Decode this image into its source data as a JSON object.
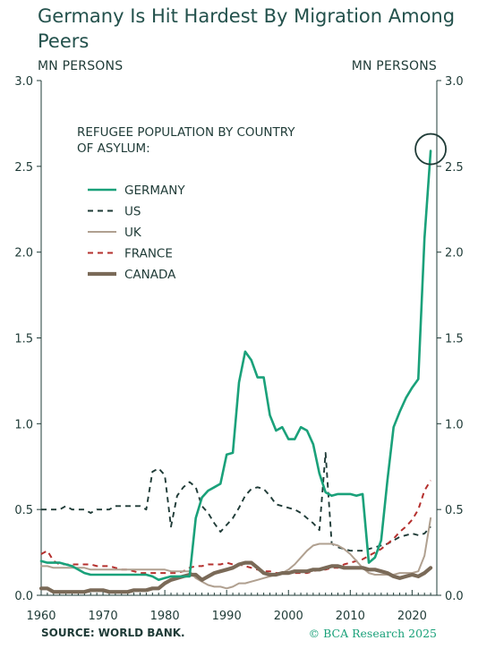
{
  "title": "Germany Is Hit Hardest By Migration Among Peers",
  "unit_left": "MN PERSONS",
  "unit_right": "MN PERSONS",
  "source": "SOURCE: WORLD BANK.",
  "credit": "© BCA Research 2025",
  "chart_data": {
    "type": "line",
    "legend_title": [
      "REFUGEE POPULATION BY COUNTRY",
      "OF ASYLUM:"
    ],
    "legend_placement": "top-left",
    "xlim": [
      1960,
      2024
    ],
    "ylim": [
      0,
      3.0
    ],
    "x_ticks": [
      "1960",
      "1970",
      "1980",
      "1990",
      "2000",
      "2010",
      "2020"
    ],
    "y_ticks": [
      "0.0",
      "0.5",
      "1.0",
      "1.5",
      "2.0",
      "2.5",
      "3.0"
    ],
    "grid": false,
    "annotations": [
      {
        "type": "circle",
        "x": 2023,
        "y": 2.59,
        "note": "highlights latest Germany value"
      }
    ],
    "series": [
      {
        "name": "GERMANY",
        "color": "#1aa17a",
        "style": "solid",
        "width": 2.6,
        "x": [
          1960,
          1961,
          1962,
          1963,
          1964,
          1965,
          1966,
          1967,
          1968,
          1969,
          1970,
          1971,
          1972,
          1973,
          1974,
          1975,
          1976,
          1977,
          1978,
          1979,
          1980,
          1981,
          1982,
          1983,
          1984,
          1985,
          1986,
          1987,
          1988,
          1989,
          1990,
          1991,
          1992,
          1993,
          1994,
          1995,
          1996,
          1997,
          1998,
          1999,
          2000,
          2001,
          2002,
          2003,
          2004,
          2005,
          2006,
          2007,
          2008,
          2009,
          2010,
          2011,
          2012,
          2013,
          2014,
          2015,
          2016,
          2017,
          2018,
          2019,
          2020,
          2021,
          2022,
          2023
        ],
        "y": [
          0.2,
          0.19,
          0.19,
          0.19,
          0.18,
          0.17,
          0.15,
          0.13,
          0.12,
          0.12,
          0.12,
          0.12,
          0.12,
          0.12,
          0.12,
          0.12,
          0.12,
          0.12,
          0.11,
          0.09,
          0.1,
          0.11,
          0.11,
          0.11,
          0.11,
          0.45,
          0.57,
          0.61,
          0.63,
          0.65,
          0.82,
          0.83,
          1.24,
          1.42,
          1.37,
          1.27,
          1.27,
          1.05,
          0.96,
          0.98,
          0.91,
          0.91,
          0.98,
          0.96,
          0.88,
          0.71,
          0.6,
          0.58,
          0.59,
          0.59,
          0.59,
          0.58,
          0.59,
          0.19,
          0.22,
          0.32,
          0.67,
          0.98,
          1.07,
          1.15,
          1.21,
          1.26,
          2.08,
          2.59
        ]
      },
      {
        "name": "US",
        "color": "#1f3b37",
        "style": "dashed",
        "width": 1.9,
        "x": [
          1960,
          1961,
          1962,
          1963,
          1964,
          1965,
          1966,
          1967,
          1968,
          1969,
          1970,
          1971,
          1972,
          1973,
          1974,
          1975,
          1976,
          1977,
          1978,
          1979,
          1980,
          1981,
          1982,
          1983,
          1984,
          1985,
          1986,
          1987,
          1988,
          1989,
          1990,
          1991,
          1992,
          1993,
          1994,
          1995,
          1996,
          1997,
          1998,
          1999,
          2000,
          2001,
          2002,
          2003,
          2004,
          2005,
          2006,
          2007,
          2008,
          2009,
          2010,
          2011,
          2012,
          2013,
          2014,
          2015,
          2016,
          2017,
          2018,
          2019,
          2020,
          2021,
          2022,
          2023
        ],
        "y": [
          0.5,
          0.5,
          0.5,
          0.5,
          0.52,
          0.5,
          0.5,
          0.5,
          0.48,
          0.5,
          0.5,
          0.5,
          0.52,
          0.52,
          0.52,
          0.52,
          0.52,
          0.5,
          0.72,
          0.74,
          0.7,
          0.4,
          0.58,
          0.63,
          0.66,
          0.63,
          0.52,
          0.48,
          0.42,
          0.37,
          0.41,
          0.45,
          0.51,
          0.58,
          0.62,
          0.63,
          0.62,
          0.58,
          0.53,
          0.52,
          0.51,
          0.5,
          0.48,
          0.45,
          0.42,
          0.38,
          0.83,
          0.3,
          0.28,
          0.27,
          0.26,
          0.26,
          0.26,
          0.27,
          0.28,
          0.29,
          0.3,
          0.32,
          0.34,
          0.35,
          0.36,
          0.35,
          0.36,
          0.4
        ]
      },
      {
        "name": "UK",
        "color": "#b0a090",
        "style": "solid",
        "width": 2.0,
        "x": [
          1960,
          1961,
          1962,
          1963,
          1964,
          1965,
          1966,
          1967,
          1968,
          1969,
          1970,
          1971,
          1972,
          1973,
          1974,
          1975,
          1976,
          1977,
          1978,
          1979,
          1980,
          1981,
          1982,
          1983,
          1984,
          1985,
          1986,
          1987,
          1988,
          1989,
          1990,
          1991,
          1992,
          1993,
          1994,
          1995,
          1996,
          1997,
          1998,
          1999,
          2000,
          2001,
          2002,
          2003,
          2004,
          2005,
          2006,
          2007,
          2008,
          2009,
          2010,
          2011,
          2012,
          2013,
          2014,
          2015,
          2016,
          2017,
          2018,
          2019,
          2020,
          2021,
          2022,
          2023
        ],
        "y": [
          0.17,
          0.17,
          0.16,
          0.16,
          0.16,
          0.16,
          0.16,
          0.16,
          0.15,
          0.15,
          0.15,
          0.15,
          0.15,
          0.15,
          0.15,
          0.15,
          0.15,
          0.15,
          0.15,
          0.15,
          0.15,
          0.14,
          0.14,
          0.14,
          0.14,
          0.1,
          0.08,
          0.06,
          0.05,
          0.05,
          0.04,
          0.05,
          0.07,
          0.07,
          0.08,
          0.09,
          0.1,
          0.11,
          0.12,
          0.13,
          0.15,
          0.18,
          0.22,
          0.26,
          0.29,
          0.3,
          0.3,
          0.3,
          0.29,
          0.27,
          0.24,
          0.2,
          0.16,
          0.13,
          0.12,
          0.12,
          0.12,
          0.12,
          0.13,
          0.13,
          0.13,
          0.14,
          0.23,
          0.45
        ]
      },
      {
        "name": "FRANCE",
        "color": "#b5302e",
        "style": "dashed",
        "width": 2.0,
        "x": [
          1960,
          1961,
          1962,
          1963,
          1964,
          1965,
          1966,
          1967,
          1968,
          1969,
          1970,
          1971,
          1972,
          1973,
          1974,
          1975,
          1976,
          1977,
          1978,
          1979,
          1980,
          1981,
          1982,
          1983,
          1984,
          1985,
          1986,
          1987,
          1988,
          1989,
          1990,
          1991,
          1992,
          1993,
          1994,
          1995,
          1996,
          1997,
          1998,
          1999,
          2000,
          2001,
          2002,
          2003,
          2004,
          2005,
          2006,
          2007,
          2008,
          2009,
          2010,
          2011,
          2012,
          2013,
          2014,
          2015,
          2016,
          2017,
          2018,
          2019,
          2020,
          2021,
          2022,
          2023
        ],
        "y": [
          0.24,
          0.26,
          0.2,
          0.18,
          0.18,
          0.18,
          0.18,
          0.18,
          0.18,
          0.17,
          0.17,
          0.17,
          0.16,
          0.15,
          0.15,
          0.14,
          0.13,
          0.13,
          0.13,
          0.13,
          0.13,
          0.13,
          0.13,
          0.14,
          0.16,
          0.17,
          0.17,
          0.18,
          0.18,
          0.18,
          0.19,
          0.18,
          0.18,
          0.17,
          0.16,
          0.15,
          0.14,
          0.14,
          0.13,
          0.13,
          0.13,
          0.13,
          0.13,
          0.13,
          0.14,
          0.15,
          0.15,
          0.16,
          0.16,
          0.18,
          0.19,
          0.2,
          0.21,
          0.23,
          0.25,
          0.27,
          0.3,
          0.33,
          0.37,
          0.4,
          0.44,
          0.5,
          0.61,
          0.67
        ]
      },
      {
        "name": "CANADA",
        "color": "#7a6a58",
        "style": "solid",
        "width": 4.2,
        "x": [
          1960,
          1961,
          1962,
          1963,
          1964,
          1965,
          1966,
          1967,
          1968,
          1969,
          1970,
          1971,
          1972,
          1973,
          1974,
          1975,
          1976,
          1977,
          1978,
          1979,
          1980,
          1981,
          1982,
          1983,
          1984,
          1985,
          1986,
          1987,
          1988,
          1989,
          1990,
          1991,
          1992,
          1993,
          1994,
          1995,
          1996,
          1997,
          1998,
          1999,
          2000,
          2001,
          2002,
          2003,
          2004,
          2005,
          2006,
          2007,
          2008,
          2009,
          2010,
          2011,
          2012,
          2013,
          2014,
          2015,
          2016,
          2017,
          2018,
          2019,
          2020,
          2021,
          2022,
          2023
        ],
        "y": [
          0.04,
          0.04,
          0.02,
          0.02,
          0.02,
          0.02,
          0.02,
          0.02,
          0.03,
          0.03,
          0.03,
          0.02,
          0.02,
          0.02,
          0.02,
          0.03,
          0.03,
          0.03,
          0.04,
          0.04,
          0.07,
          0.09,
          0.1,
          0.11,
          0.12,
          0.12,
          0.09,
          0.11,
          0.13,
          0.14,
          0.15,
          0.16,
          0.18,
          0.19,
          0.19,
          0.16,
          0.13,
          0.12,
          0.12,
          0.13,
          0.13,
          0.14,
          0.14,
          0.14,
          0.15,
          0.15,
          0.16,
          0.17,
          0.17,
          0.16,
          0.16,
          0.16,
          0.16,
          0.15,
          0.15,
          0.14,
          0.13,
          0.11,
          0.1,
          0.11,
          0.12,
          0.11,
          0.13,
          0.16
        ]
      }
    ]
  }
}
